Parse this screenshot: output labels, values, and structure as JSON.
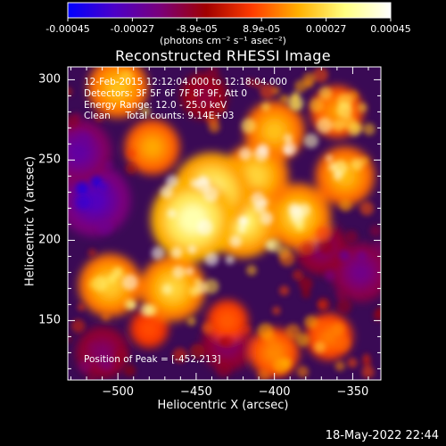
{
  "colorbar": {
    "ticks": [
      "-0.00045",
      "-0.00027",
      "-8.9e-05",
      "8.9e-05",
      "0.00027",
      "0.00045"
    ],
    "units": "(photons cm⁻² s⁻¹ asec⁻²)",
    "colormap": [
      "#0000ff",
      "#4b00c8",
      "#7a007a",
      "#a00000",
      "#ff3c00",
      "#ffb000",
      "#ffff80",
      "#ffffff"
    ]
  },
  "info": {
    "time": "12-Feb-2015 12:12:04.000 to 12:18:04.000",
    "detectors": "Detectors: 3F 5F 6F 7F 8F 9F, Att 0",
    "energy": "Energy Range: 12.0 - 25.0 keV",
    "clean": "Clean     Total counts: 9.14E+03",
    "peak": "Position of Peak = [-452,213]"
  },
  "footer": "18-May-2022 22:44",
  "chart_data": {
    "type": "heatmap",
    "title": "Reconstructed RHESSI Image",
    "xlabel": "Heliocentric X (arcsec)",
    "ylabel": "Heliocentric Y (arcsec)",
    "xlim": [
      -532,
      -332
    ],
    "ylim": [
      113,
      308
    ],
    "xticks": [
      -500,
      -450,
      -400,
      -350
    ],
    "yticks": [
      150,
      200,
      250,
      300
    ],
    "clim": [
      -0.00045,
      0.00045
    ],
    "peak": [
      -452,
      213
    ],
    "sources": [
      {
        "x": -452,
        "y": 213,
        "value": 0.00044
      },
      {
        "x": -440,
        "y": 230,
        "value": 0.0004
      },
      {
        "x": -420,
        "y": 212,
        "value": 0.00036
      },
      {
        "x": -412,
        "y": 240,
        "value": 0.0003
      },
      {
        "x": -385,
        "y": 215,
        "value": 0.0003
      },
      {
        "x": -400,
        "y": 268,
        "value": 0.00026
      },
      {
        "x": -465,
        "y": 170,
        "value": 0.0003
      },
      {
        "x": -505,
        "y": 172,
        "value": 0.00028
      },
      {
        "x": -500,
        "y": 295,
        "value": 0.00026
      },
      {
        "x": -478,
        "y": 258,
        "value": 0.00022
      },
      {
        "x": -355,
        "y": 240,
        "value": 0.00025
      },
      {
        "x": -360,
        "y": 280,
        "value": 0.0002
      },
      {
        "x": -400,
        "y": 130,
        "value": 0.00018
      },
      {
        "x": -365,
        "y": 140,
        "value": 0.00016
      },
      {
        "x": -430,
        "y": 150,
        "value": 0.00012
      },
      {
        "x": -480,
        "y": 145,
        "value": 0.0001
      },
      {
        "x": -515,
        "y": 225,
        "value": -0.00035
      },
      {
        "x": -525,
        "y": 255,
        "value": -0.0003
      },
      {
        "x": -345,
        "y": 180,
        "value": -0.00025
      },
      {
        "x": -370,
        "y": 195,
        "value": -0.0002
      },
      {
        "x": -430,
        "y": 135,
        "value": -0.0002
      },
      {
        "x": -445,
        "y": 290,
        "value": -0.00015
      },
      {
        "x": -510,
        "y": 130,
        "value": -0.0002
      }
    ]
  }
}
